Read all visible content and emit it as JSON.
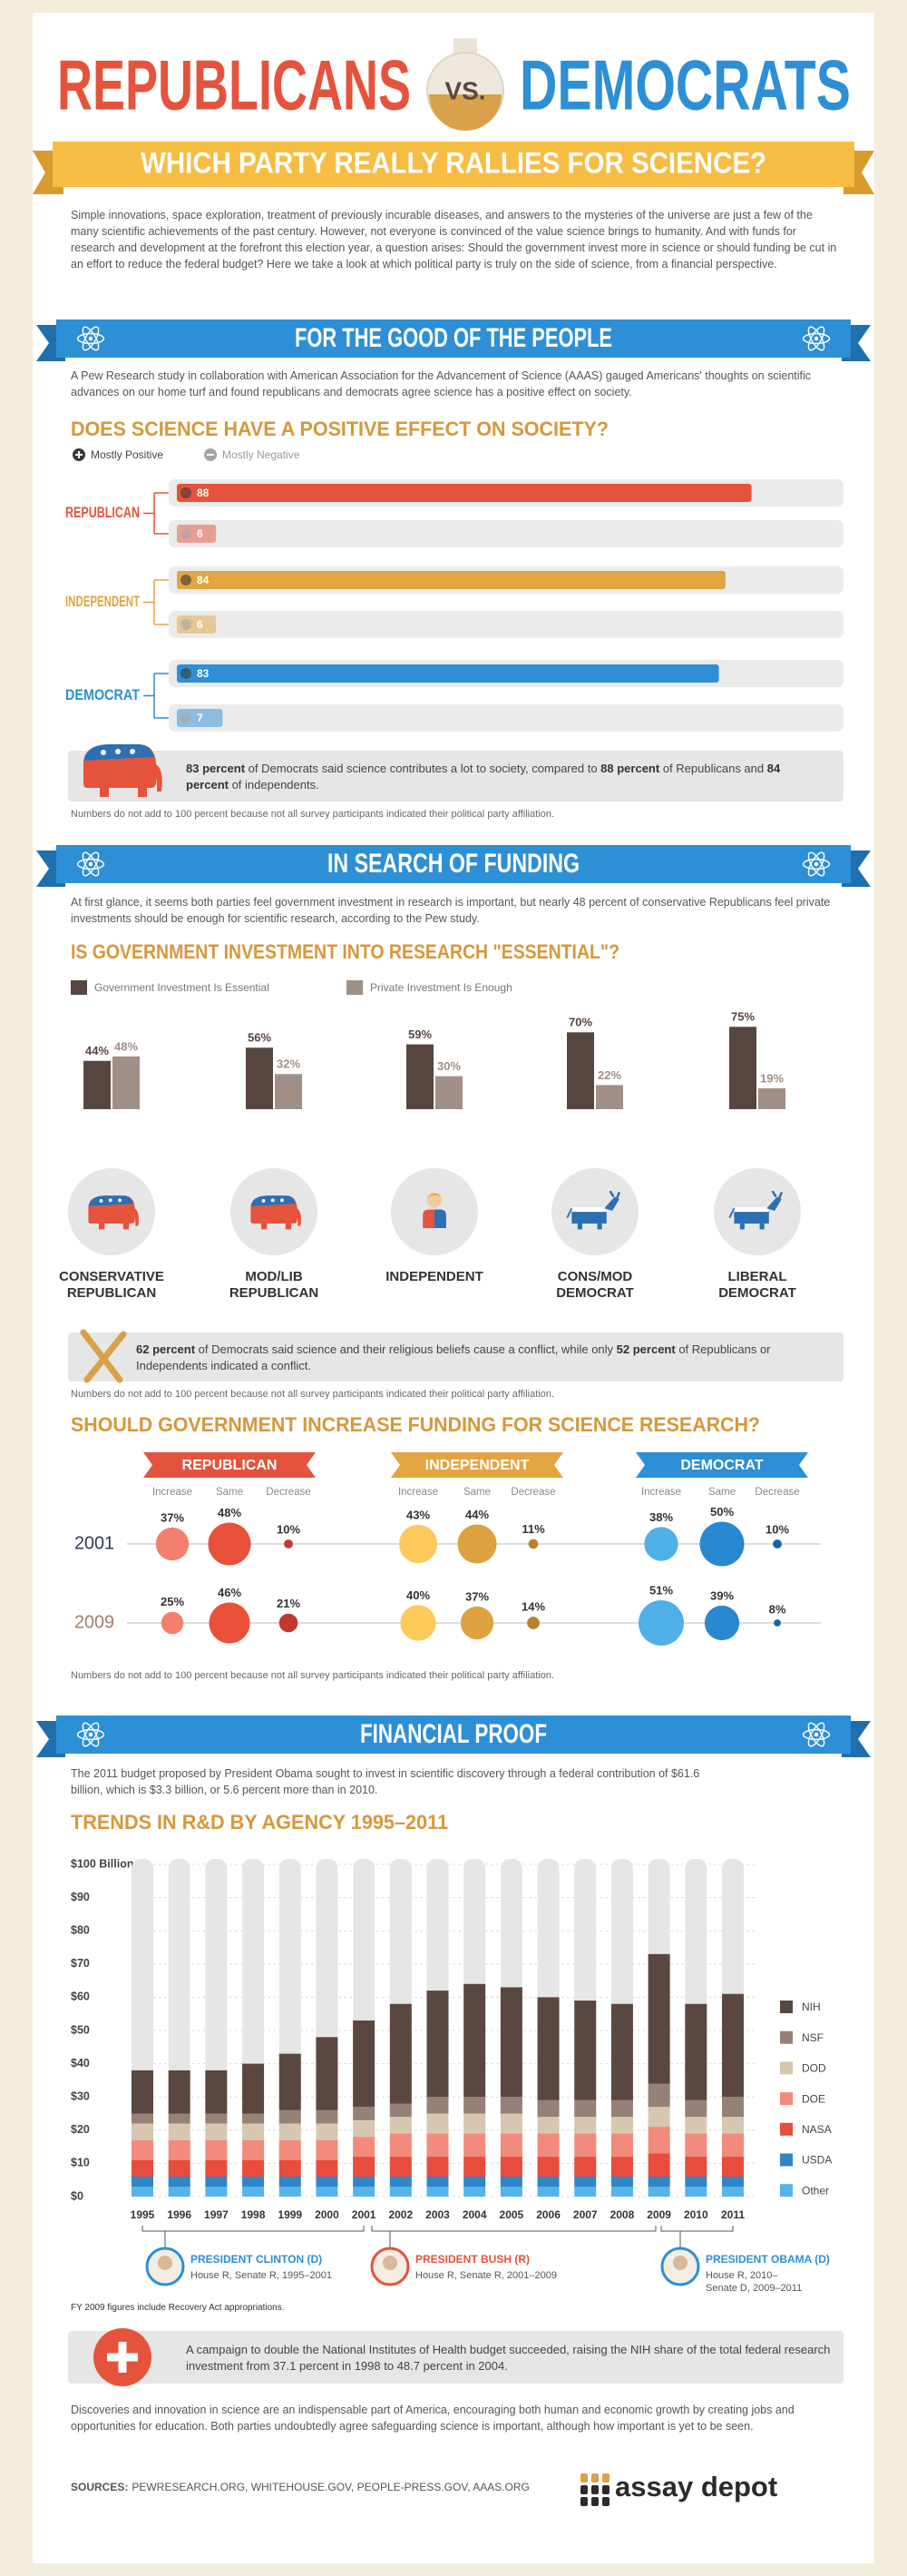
{
  "header": {
    "title_left": "REPUBLICANS",
    "vs": "VS.",
    "title_right": "DEMOCRATS",
    "subtitle": "WHICH PARTY REALLY RALLIES FOR SCIENCE?"
  },
  "intro": "Simple innovations, space exploration, treatment of previously incurable diseases, and answers to the mysteries of the universe are just a few of the many scientific achievements of the past century. However, not everyone is convinced of the value science brings to humanity. And with funds for research and development at the forefront this election year, a question arises: Should the government invest more in science or should funding be cut in an effort to reduce the federal budget? Here we take a look at which political party is truly on the side of science, from a financial perspective.",
  "sections": [
    {
      "banner": "FOR THE GOOD OF THE PEOPLE",
      "text": "A Pew Research study in collaboration with American Association for the Advancement of Science (AAAS) gauged Americans' thoughts on scientific advances on our home turf and found republicans and democrats agree science has a positive effect on society."
    },
    {
      "banner": "IN SEARCH OF FUNDING",
      "text": "At first glance, it seems both parties feel government investment in research is important, but nearly 48 percent of conservative Republicans feel private investments should be enough for scientific research, according to the Pew study."
    },
    {
      "banner": "FINANCIAL PROOF",
      "text": "The 2011 budget proposed by President Obama sought to invest in scientific discovery through a federal contribution of $61.6 billion, which is $3.3 billion, or 5.6 percent more than in 2010."
    }
  ],
  "callouts": [
    [
      "83 percent",
      " of Democrats said science contributes a lot to society, compared to ",
      "88 percent",
      " of Republicans and ",
      "84 percent",
      " of independents."
    ],
    [
      "62 percent",
      " of Democrats said science and their religious beliefs cause a conflict, while only ",
      "52 percent",
      " of Republicans or Independents indicated a conflict."
    ],
    [
      "A campaign to double the National Institutes of Health budget succeeded, raising the NIH share of the total federal research investment from 37.1 percent in 1998 to 48.7 percent in 2004."
    ]
  ],
  "footnotes": [
    "Numbers do not add to 100 percent because not all survey participants indicated their political party affiliation.",
    "Numbers do not add to 100 percent because not all survey participants indicated their political party affiliation.",
    "Numbers do not add to 100 percent because not all survey participants indicated their political party affiliation."
  ],
  "fy_note": "FY 2009 figures include Recovery Act appropriations.",
  "closing": "Discoveries and innovation in science are an indispensable part of America, encouraging both human and economic growth by creating jobs and opportunities for education. Both parties undoubtedly agree safeguarding science is important, although how important is yet to be seen.",
  "sources": {
    "label": "SOURCES:",
    "list": "PEWRESEARCH.ORG, WHITEHOUSE.GOV, PEOPLE-PRESS.GOV, AAAS.ORG"
  },
  "logo": "assay depot",
  "chart_data": [
    {
      "type": "hbar",
      "title": "DOES SCIENCE HAVE A POSITIVE EFFECT ON SOCIETY?",
      "categories": [
        "REPUBLICAN",
        "INDEPENDENT",
        "DEMOCRAT"
      ],
      "category_colors": [
        "#e5533c",
        "#e3a540",
        "#2d8fd5"
      ],
      "series": [
        {
          "name": "Mostly Positive",
          "color": "#3a3a3a",
          "values": [
            88,
            84,
            83
          ]
        },
        {
          "name": "Mostly Negative",
          "color": "#a5a5a5",
          "values": [
            6,
            6,
            7
          ]
        }
      ],
      "xlim": [
        0,
        100
      ]
    },
    {
      "type": "bar",
      "title": "IS GOVERNMENT INVESTMENT INTO RESEARCH \"ESSENTIAL\"?",
      "categories": [
        "CONSERVATIVE REPUBLICAN",
        "MOD/LIB REPUBLICAN",
        "INDEPENDENT",
        "CONS/MOD DEMOCRAT",
        "LIBERAL DEMOCRAT"
      ],
      "series": [
        {
          "name": "Government Investment Is Essential",
          "color": "#574640",
          "values": [
            44,
            56,
            59,
            70,
            75
          ],
          "value_labels": [
            "44%",
            "56%",
            "59%",
            "70%",
            "75%"
          ]
        },
        {
          "name": "Private Investment Is Enough",
          "color": "#a08f86",
          "values": [
            48,
            32,
            30,
            22,
            19
          ],
          "value_labels": [
            "48%",
            "32%",
            "30%",
            "22%",
            "19%"
          ]
        }
      ],
      "ylim": [
        0,
        100
      ]
    },
    {
      "type": "bubble",
      "title": "SHOULD GOVERNMENT INCREASE FUNDING FOR SCIENCE RESEARCH?",
      "rows": [
        "2001",
        "2009"
      ],
      "row_colors": [
        "#2d3a55",
        "#a0806a"
      ],
      "groups": [
        {
          "name": "REPUBLICAN",
          "color": "#e5533c",
          "columns": [
            "Increase",
            "Same",
            "Decrease"
          ],
          "colors": [
            "#f2806c",
            "#e8503a",
            "#c0392b"
          ],
          "values": [
            [
              37,
              48,
              10
            ],
            [
              25,
              46,
              21
            ]
          ],
          "value_labels": [
            [
              "37%",
              "48%",
              "10%"
            ],
            [
              "25%",
              "46%",
              "21%"
            ]
          ]
        },
        {
          "name": "INDEPENDENT",
          "color": "#e3a540",
          "columns": [
            "Increase",
            "Same",
            "Decrease"
          ],
          "colors": [
            "#fcc95a",
            "#dea140",
            "#b9822e"
          ],
          "values": [
            [
              43,
              44,
              11
            ],
            [
              40,
              37,
              14
            ]
          ],
          "value_labels": [
            [
              "43%",
              "44%",
              "11%"
            ],
            [
              "40%",
              "37%",
              "14%"
            ]
          ]
        },
        {
          "name": "DEMOCRAT",
          "color": "#2d8fd5",
          "columns": [
            "Increase",
            "Same",
            "Decrease"
          ],
          "colors": [
            "#4fb0e8",
            "#2a88d0",
            "#1a64a8"
          ],
          "values": [
            [
              38,
              50,
              10
            ],
            [
              51,
              39,
              8
            ]
          ],
          "value_labels": [
            [
              "38%",
              "50%",
              "10%"
            ],
            [
              "51%",
              "39%",
              "8%"
            ]
          ]
        }
      ]
    },
    {
      "type": "stacked_bar",
      "title": "TRENDS IN R&D BY AGENCY 1995–2011",
      "categories": [
        "1995",
        "1996",
        "1997",
        "1998",
        "1999",
        "2000",
        "2001",
        "2002",
        "2003",
        "2004",
        "2005",
        "2006",
        "2007",
        "2008",
        "2009",
        "2010",
        "2011"
      ],
      "series": [
        {
          "name": "NIH",
          "color": "#5a4740",
          "values": [
            13,
            13,
            13,
            15,
            17,
            22,
            26,
            30,
            32,
            34,
            33,
            31,
            30,
            29,
            39,
            29,
            31
          ]
        },
        {
          "name": "NSF",
          "color": "#958177",
          "values": [
            3,
            3,
            3,
            3,
            4,
            4,
            4,
            4,
            5,
            5,
            5,
            5,
            5,
            5,
            7,
            5,
            6
          ]
        },
        {
          "name": "DOD",
          "color": "#d7c7b0",
          "values": [
            5,
            5,
            5,
            5,
            5,
            5,
            5,
            5,
            6,
            6,
            6,
            5,
            5,
            5,
            6,
            5,
            5
          ]
        },
        {
          "name": "DOE",
          "color": "#f28b7d",
          "values": [
            6,
            6,
            6,
            6,
            6,
            6,
            6,
            7,
            7,
            7,
            7,
            7,
            7,
            7,
            8,
            7,
            7
          ]
        },
        {
          "name": "NASA",
          "color": "#e84c3d",
          "values": [
            5,
            5,
            5,
            5,
            5,
            5,
            6,
            6,
            6,
            6,
            6,
            6,
            6,
            6,
            7,
            6,
            6
          ]
        },
        {
          "name": "USDA",
          "color": "#2f85c8",
          "values": [
            3,
            3,
            3,
            3,
            3,
            3,
            3,
            3,
            3,
            3,
            3,
            3,
            3,
            3,
            3,
            3,
            3
          ]
        },
        {
          "name": "Other",
          "color": "#55b4e8",
          "values": [
            3,
            3,
            3,
            3,
            3,
            3,
            3,
            3,
            3,
            3,
            3,
            3,
            3,
            3,
            3,
            3,
            3
          ]
        }
      ],
      "ylim": [
        0,
        100
      ],
      "yticks": [
        {
          "value": 0,
          "label": "$0"
        },
        {
          "value": 10,
          "label": "$10"
        },
        {
          "value": 20,
          "label": "$20"
        },
        {
          "value": 30,
          "label": "$30"
        },
        {
          "value": 40,
          "label": "$40"
        },
        {
          "value": 50,
          "label": "$50"
        },
        {
          "value": 60,
          "label": "$60"
        },
        {
          "value": 70,
          "label": "$70"
        },
        {
          "value": 80,
          "label": "$80"
        },
        {
          "value": 90,
          "label": "$90"
        },
        {
          "value": 100,
          "label": "$100 Billion"
        }
      ],
      "grid": true,
      "legend": "right",
      "annotations": [
        {
          "name": "PRESIDENT CLINTON (D)",
          "color": "#2d8fd5",
          "detail": [
            "House R, Senate R, 1995–2001"
          ]
        },
        {
          "name": "PRESIDENT BUSH (R)",
          "color": "#e5533c",
          "detail": [
            "House R, Senate R, 2001–2009"
          ]
        },
        {
          "name": "PRESIDENT OBAMA (D)",
          "color": "#2d8fd5",
          "detail": [
            "House R, 2010–",
            "Senate D, 2009–2011"
          ]
        }
      ]
    }
  ]
}
